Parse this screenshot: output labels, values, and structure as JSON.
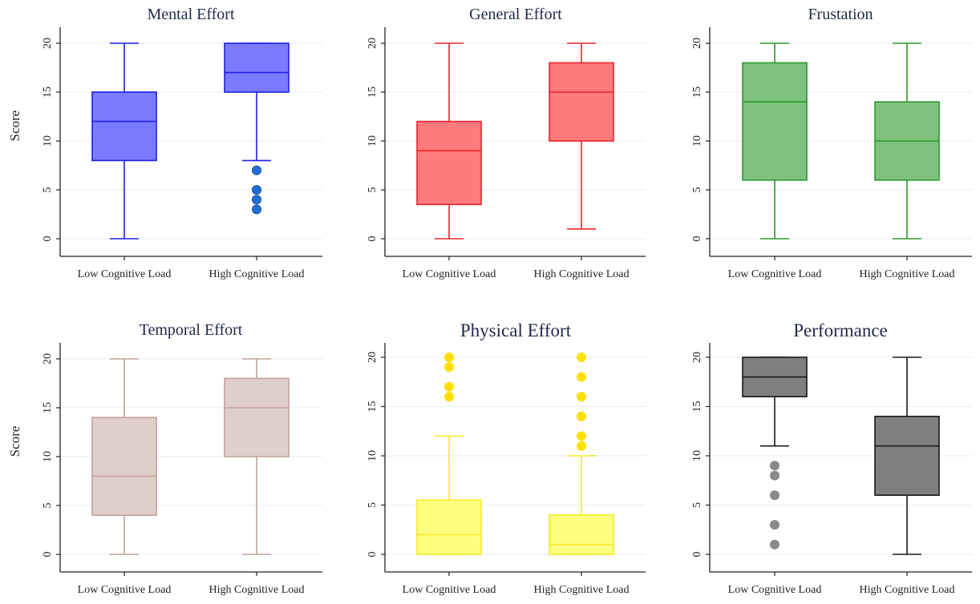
{
  "chart_data": [
    {
      "type": "box",
      "title": "Mental Effort",
      "ylabel": "Score",
      "ylim": [
        -1,
        21
      ],
      "yticks": [
        0,
        5,
        10,
        15,
        20
      ],
      "categories": [
        "Low Cognitive Load",
        "High Cognitive Load"
      ],
      "color": "#1f1fe8",
      "fill": "#7b7bff",
      "boxes": [
        {
          "min": 0,
          "q1": 8,
          "median": 12,
          "q3": 15,
          "max": 20,
          "outliers": []
        },
        {
          "min": 8,
          "q1": 15,
          "median": 17,
          "q3": 20,
          "max": 20,
          "outliers": [
            7,
            5,
            4,
            3
          ]
        }
      ],
      "outlier_color": "#1f6fd8"
    },
    {
      "type": "box",
      "title": "General Effort",
      "ylabel": "",
      "ylim": [
        -1,
        21
      ],
      "yticks": [
        0,
        5,
        10,
        15,
        20
      ],
      "categories": [
        "Low Cognitive Load",
        "High Cognitive Load"
      ],
      "color": "#e8262d",
      "fill": "#ff7b7b",
      "boxes": [
        {
          "min": 0,
          "q1": 3.5,
          "median": 9,
          "q3": 12,
          "max": 20,
          "outliers": []
        },
        {
          "min": 1,
          "q1": 10,
          "median": 15,
          "q3": 18,
          "max": 20,
          "outliers": []
        }
      ],
      "outlier_color": "#e8262d"
    },
    {
      "type": "box",
      "title": "Frustation",
      "ylabel": "",
      "ylim": [
        -1,
        21
      ],
      "yticks": [
        0,
        5,
        10,
        15,
        20
      ],
      "categories": [
        "Low Cognitive Load",
        "High Cognitive Load"
      ],
      "color": "#2a9a2a",
      "fill": "#7fc27f",
      "boxes": [
        {
          "min": 0,
          "q1": 6,
          "median": 14,
          "q3": 18,
          "max": 20,
          "outliers": []
        },
        {
          "min": 0,
          "q1": 6,
          "median": 10,
          "q3": 14,
          "max": 20,
          "outliers": []
        }
      ],
      "outlier_color": "#2a9a2a"
    },
    {
      "type": "box",
      "title": "Temporal Effort",
      "ylabel": "Score",
      "ylim": [
        -1,
        21
      ],
      "yticks": [
        0,
        5,
        10,
        15,
        20
      ],
      "categories": [
        "Low Cognitive Load",
        "High Cognitive Load"
      ],
      "color": "#c4a09a",
      "fill": "#dfcfcc",
      "boxes": [
        {
          "min": 0,
          "q1": 4,
          "median": 8,
          "q3": 14,
          "max": 20,
          "outliers": []
        },
        {
          "min": 0,
          "q1": 10,
          "median": 15,
          "q3": 18,
          "max": 20,
          "outliers": []
        }
      ],
      "outlier_color": "#c4a09a"
    },
    {
      "type": "box",
      "title": "Physical Effort",
      "ylabel": "",
      "ylim": [
        -1,
        21
      ],
      "yticks": [
        0,
        5,
        10,
        15,
        20
      ],
      "categories": [
        "Low Cognitive Load",
        "High Cognitive Load"
      ],
      "color": "#f5e82a",
      "fill": "#ffff80",
      "boxes": [
        {
          "min": 0,
          "q1": 0,
          "median": 2,
          "q3": 5.5,
          "max": 12,
          "outliers": [
            20,
            19,
            17,
            16
          ]
        },
        {
          "min": 0,
          "q1": 0,
          "median": 1,
          "q3": 4,
          "max": 10,
          "outliers": [
            20,
            18,
            16,
            14,
            12,
            11
          ]
        }
      ],
      "outlier_color": "#ffe000"
    },
    {
      "type": "box",
      "title": "Performance",
      "ylabel": "",
      "ylim": [
        -1,
        21
      ],
      "yticks": [
        0,
        5,
        10,
        15,
        20
      ],
      "categories": [
        "Low Cognitive Load",
        "High Cognitive Load"
      ],
      "color": "#1a1a1a",
      "fill": "#7f7f7f",
      "boxes": [
        {
          "min": 11,
          "q1": 16,
          "median": 18,
          "q3": 20,
          "max": 20,
          "outliers": [
            9,
            8,
            6,
            3,
            1
          ]
        },
        {
          "min": 0,
          "q1": 6,
          "median": 11,
          "q3": 14,
          "max": 20,
          "outliers": []
        }
      ],
      "outlier_color": "#8a8a8a"
    }
  ]
}
